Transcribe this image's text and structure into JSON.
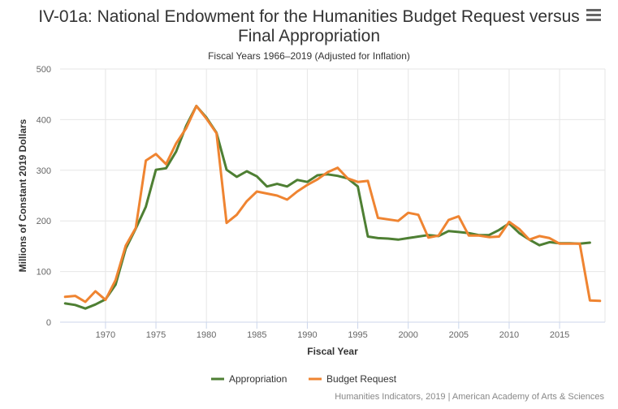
{
  "header": {
    "title_line1": "IV-01a: National Endowment for the Humanities Budget Request versus",
    "title_line2": "Final Appropriation",
    "subtitle": "Fiscal Years 1966–2019 (Adjusted for Inflation)",
    "menu_icon": "hamburger-menu-icon"
  },
  "credit": "Humanities Indicators, 2019 | American Academy of Arts & Sciences",
  "colors": {
    "appropriation": "#4e7f33",
    "budget_request": "#ef8431",
    "grid": "#e6e6e6",
    "axis": "#333333"
  },
  "chart_data": {
    "type": "line",
    "title": "IV-01a: National Endowment for the Humanities Budget Request versus Final Appropriation",
    "subtitle": "Fiscal Years 1966–2019 (Adjusted for Inflation)",
    "xlabel": "Fiscal Year",
    "ylabel": "Millions of Constant 2019 Dollars",
    "xlim": [
      1965.5,
      2019.5
    ],
    "ylim": [
      0,
      500
    ],
    "xticks": [
      1970,
      1975,
      1980,
      1985,
      1990,
      1995,
      2000,
      2005,
      2010,
      2015
    ],
    "yticks": [
      0,
      100,
      200,
      300,
      400,
      500
    ],
    "grid": true,
    "legend": "bottom-center",
    "series": [
      {
        "name": "Appropriation",
        "color_key": "appropriation",
        "x": [
          1966,
          1967,
          1968,
          1969,
          1970,
          1971,
          1972,
          1973,
          1974,
          1975,
          1976,
          1977,
          1978,
          1979,
          1980,
          1981,
          1982,
          1983,
          1984,
          1985,
          1986,
          1987,
          1988,
          1989,
          1990,
          1991,
          1992,
          1993,
          1994,
          1995,
          1996,
          1997,
          1998,
          1999,
          2000,
          2001,
          2002,
          2003,
          2004,
          2005,
          2006,
          2007,
          2008,
          2009,
          2010,
          2011,
          2012,
          2013,
          2014,
          2015,
          2016,
          2017,
          2018
        ],
        "values": [
          37,
          34,
          27,
          35,
          45,
          74,
          145,
          185,
          228,
          301,
          304,
          337,
          388,
          427,
          404,
          374,
          301,
          287,
          298,
          288,
          268,
          273,
          268,
          281,
          277,
          290,
          292,
          289,
          284,
          268,
          169,
          166,
          165,
          163,
          166,
          169,
          172,
          170,
          180,
          178,
          176,
          172,
          172,
          182,
          195,
          176,
          163,
          152,
          158,
          156,
          156,
          155,
          157
        ]
      },
      {
        "name": "Budget Request",
        "color_key": "budget_request",
        "x": [
          1966,
          1967,
          1968,
          1969,
          1970,
          1971,
          1972,
          1973,
          1974,
          1975,
          1976,
          1977,
          1978,
          1979,
          1980,
          1981,
          1982,
          1983,
          1984,
          1985,
          1986,
          1987,
          1988,
          1989,
          1990,
          1991,
          1992,
          1993,
          1994,
          1995,
          1996,
          1997,
          1998,
          1999,
          2000,
          2001,
          2002,
          2003,
          2004,
          2005,
          2006,
          2007,
          2008,
          2009,
          2010,
          2011,
          2012,
          2013,
          2014,
          2015,
          2016,
          2017,
          2018,
          2019
        ],
        "values": [
          50,
          52,
          40,
          61,
          44,
          83,
          151,
          186,
          319,
          332,
          312,
          353,
          383,
          427,
          402,
          373,
          196,
          212,
          239,
          258,
          254,
          250,
          242,
          258,
          271,
          282,
          296,
          305,
          284,
          277,
          279,
          206,
          203,
          200,
          216,
          212,
          167,
          171,
          202,
          209,
          171,
          171,
          168,
          169,
          198,
          184,
          163,
          170,
          166,
          155,
          155,
          155,
          43,
          42
        ]
      }
    ]
  }
}
